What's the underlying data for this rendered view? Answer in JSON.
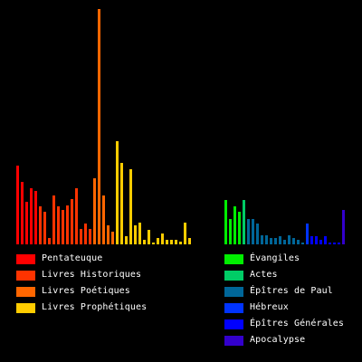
{
  "chart_data": {
    "type": "bar",
    "title": "",
    "xlabel": "",
    "ylabel": "",
    "ylim": [
      0,
      150
    ],
    "grid": false,
    "legend_position": "bottom",
    "groups": [
      {
        "name": "Pentateuque",
        "color": "#ff0000",
        "values": [
          50,
          40,
          27,
          36,
          34
        ]
      },
      {
        "name": "Livres Historiques",
        "color": "#ff3300",
        "values": [
          24,
          21,
          4,
          31,
          24,
          22,
          25,
          29,
          36,
          10,
          13,
          10
        ]
      },
      {
        "name": "Livres Poétiques",
        "color": "#ff6600",
        "values": [
          42,
          150,
          31,
          12,
          8
        ]
      },
      {
        "name": "Livres Prophétiques",
        "color": "#ffcc00",
        "values": [
          66,
          52,
          5,
          48,
          12,
          14,
          3,
          9,
          1,
          4,
          7,
          3,
          3,
          3,
          2,
          14,
          4
        ]
      },
      {
        "name": "Évangiles",
        "color": "#00ee00",
        "values": [
          28,
          16,
          24,
          21
        ]
      },
      {
        "name": "Actes",
        "color": "#00cc66",
        "values": [
          28
        ]
      },
      {
        "name": "Épîtres de Paul",
        "color": "#006699",
        "values": [
          16,
          16,
          13,
          6,
          6,
          4,
          4,
          5,
          3,
          6,
          4,
          3,
          1
        ]
      },
      {
        "name": "Hébreux",
        "color": "#0033ff",
        "values": [
          13
        ]
      },
      {
        "name": "Épîtres Générales",
        "color": "#0000ff",
        "values": [
          5,
          5,
          3,
          5,
          1,
          1,
          1
        ]
      },
      {
        "name": "Apocalypse",
        "color": "#3300cc",
        "values": [
          22
        ]
      }
    ]
  }
}
